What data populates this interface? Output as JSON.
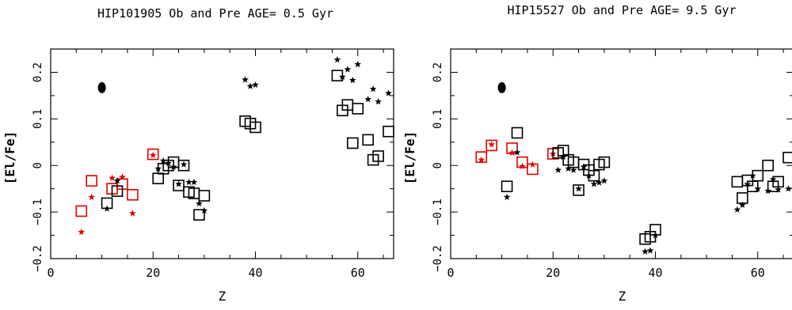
{
  "chart_data": [
    {
      "type": "scatter",
      "title": "HIP101905 Ob and Pre AGE= 0.5 Gyr",
      "xlabel": "Z",
      "ylabel": "[El/Fe]",
      "xlim": [
        0,
        67
      ],
      "ylim": [
        -0.2,
        0.25
      ],
      "xticks": [
        0,
        20,
        40,
        60
      ],
      "yticks": [
        -0.2,
        -0.1,
        0,
        0.1,
        0.2
      ],
      "xtick_labels": [
        "0",
        "20",
        "40",
        "60"
      ],
      "ytick_labels": [
        "−0.2",
        "−0.1",
        "0",
        "0.1",
        "0.2"
      ],
      "reference_point": {
        "x": 10,
        "y": 0.167
      },
      "series": [
        {
          "marker": "square",
          "color": "#e00000",
          "points": [
            [
              6,
              -0.098
            ],
            [
              8,
              -0.033
            ],
            [
              12,
              -0.05
            ],
            [
              14,
              -0.04
            ],
            [
              16,
              -0.063
            ],
            [
              20,
              0.024
            ]
          ]
        },
        {
          "marker": "star",
          "color": "#e00000",
          "points": [
            [
              6,
              -0.143
            ],
            [
              8,
              -0.068
            ],
            [
              12,
              -0.027
            ],
            [
              14,
              -0.025
            ],
            [
              16,
              -0.103
            ],
            [
              20,
              0.022
            ]
          ]
        },
        {
          "marker": "square",
          "color": "#000000",
          "points": [
            [
              11,
              -0.081
            ],
            [
              13,
              -0.055
            ],
            [
              21,
              -0.028
            ],
            [
              22,
              -0.007
            ],
            [
              23,
              0.0
            ],
            [
              24,
              0.007
            ],
            [
              25,
              -0.043
            ],
            [
              26,
              0.0
            ],
            [
              27,
              -0.057
            ],
            [
              28,
              -0.06
            ],
            [
              29,
              -0.106
            ],
            [
              30,
              -0.065
            ],
            [
              38,
              0.095
            ],
            [
              39,
              0.09
            ],
            [
              40,
              0.082
            ],
            [
              56,
              0.193
            ],
            [
              57,
              0.118
            ],
            [
              58,
              0.13
            ],
            [
              59,
              0.048
            ],
            [
              60,
              0.122
            ],
            [
              62,
              0.055
            ],
            [
              63,
              0.012
            ],
            [
              64,
              0.02
            ],
            [
              66,
              0.073
            ]
          ]
        },
        {
          "marker": "star",
          "color": "#000000",
          "points": [
            [
              11,
              -0.093
            ],
            [
              13,
              -0.033
            ],
            [
              21,
              -0.007
            ],
            [
              22,
              0.01
            ],
            [
              23,
              0.005
            ],
            [
              24,
              -0.003
            ],
            [
              25,
              -0.04
            ],
            [
              26,
              0.002
            ],
            [
              27,
              -0.036
            ],
            [
              28,
              -0.036
            ],
            [
              29,
              -0.082
            ],
            [
              30,
              -0.097
            ],
            [
              38,
              0.184
            ],
            [
              39,
              0.17
            ],
            [
              40,
              0.173
            ],
            [
              56,
              0.227
            ],
            [
              57,
              0.19
            ],
            [
              58,
              0.206
            ],
            [
              59,
              0.183
            ],
            [
              60,
              0.217
            ],
            [
              62,
              0.142
            ],
            [
              63,
              0.164
            ],
            [
              64,
              0.137
            ],
            [
              66,
              0.155
            ]
          ]
        }
      ]
    },
    {
      "type": "scatter",
      "title": "HIP15527  Ob and Pre AGE= 9.5 Gyr",
      "xlabel": "Z",
      "ylabel": "[El/Fe]",
      "xlim": [
        0,
        67
      ],
      "ylim": [
        -0.2,
        0.25
      ],
      "xticks": [
        0,
        20,
        40,
        60
      ],
      "yticks": [
        -0.2,
        -0.1,
        0,
        0.1,
        0.2
      ],
      "xtick_labels": [
        "0",
        "20",
        "40",
        "60"
      ],
      "ytick_labels": [
        "−0.2",
        "−0.1",
        "0",
        "0.1",
        "0.2"
      ],
      "reference_point": {
        "x": 10,
        "y": 0.167
      },
      "series": [
        {
          "marker": "square",
          "color": "#e00000",
          "points": [
            [
              6,
              0.018
            ],
            [
              8,
              0.043
            ],
            [
              12,
              0.037
            ],
            [
              14,
              0.007
            ],
            [
              16,
              -0.008
            ],
            [
              20,
              0.025
            ]
          ]
        },
        {
          "marker": "star",
          "color": "#e00000",
          "points": [
            [
              6,
              0.012
            ],
            [
              8,
              0.045
            ],
            [
              12,
              0.027
            ],
            [
              14,
              -0.002
            ],
            [
              16,
              0.002
            ],
            [
              20,
              0.025
            ]
          ]
        },
        {
          "marker": "square",
          "color": "#000000",
          "points": [
            [
              11,
              -0.045
            ],
            [
              13,
              0.07
            ],
            [
              21,
              0.027
            ],
            [
              22,
              0.032
            ],
            [
              23,
              0.012
            ],
            [
              24,
              0.007
            ],
            [
              25,
              -0.053
            ],
            [
              26,
              0.002
            ],
            [
              27,
              -0.01
            ],
            [
              28,
              -0.022
            ],
            [
              29,
              0.002
            ],
            [
              30,
              0.007
            ],
            [
              38,
              -0.158
            ],
            [
              39,
              -0.153
            ],
            [
              40,
              -0.138
            ],
            [
              56,
              -0.035
            ],
            [
              57,
              -0.07
            ],
            [
              58,
              -0.032
            ],
            [
              59,
              -0.045
            ],
            [
              60,
              -0.022
            ],
            [
              62,
              0.0
            ],
            [
              63,
              -0.045
            ],
            [
              64,
              -0.035
            ],
            [
              66,
              0.017
            ]
          ]
        },
        {
          "marker": "star",
          "color": "#000000",
          "points": [
            [
              11,
              -0.068
            ],
            [
              13,
              0.028
            ],
            [
              21,
              -0.01
            ],
            [
              22,
              0.018
            ],
            [
              23,
              -0.007
            ],
            [
              24,
              -0.01
            ],
            [
              25,
              -0.05
            ],
            [
              26,
              -0.003
            ],
            [
              27,
              -0.022
            ],
            [
              28,
              -0.04
            ],
            [
              29,
              -0.037
            ],
            [
              30,
              -0.033
            ],
            [
              38,
              -0.185
            ],
            [
              39,
              -0.183
            ],
            [
              40,
              -0.15
            ],
            [
              56,
              -0.095
            ],
            [
              57,
              -0.085
            ],
            [
              58,
              -0.04
            ],
            [
              59,
              -0.022
            ],
            [
              60,
              -0.05
            ],
            [
              62,
              -0.055
            ],
            [
              63,
              -0.03
            ],
            [
              64,
              -0.052
            ],
            [
              66,
              -0.05
            ]
          ]
        }
      ]
    }
  ]
}
